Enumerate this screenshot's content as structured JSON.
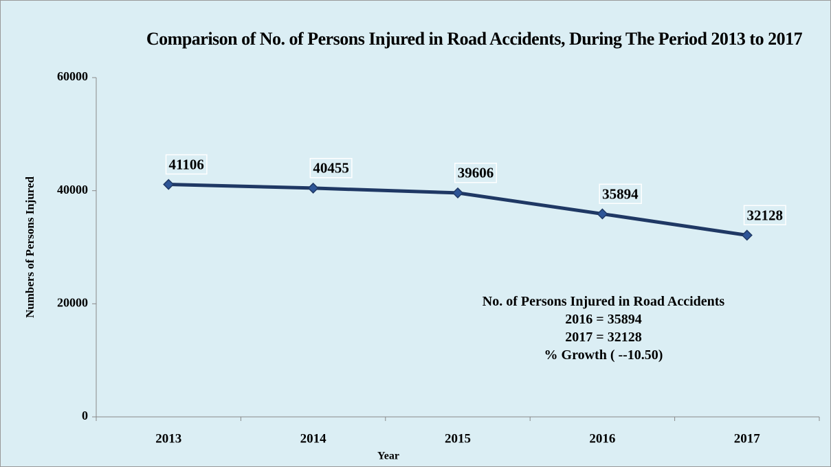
{
  "chart_data": {
    "type": "line",
    "title": "Comparison of No. of Persons Injured in Road Accidents, During The Period 2013 to 2017",
    "x_label": "Year",
    "y_label": "Numbers  of Persons Injured",
    "categories": [
      "2013",
      "2014",
      "2015",
      "2016",
      "2017"
    ],
    "series": [
      {
        "name": "No. of Persons Injured",
        "color": "#1f3864",
        "values": [
          41106,
          40455,
          39606,
          35894,
          32128
        ]
      }
    ],
    "ylim": [
      0,
      60000
    ],
    "yticks": [
      0,
      20000,
      40000,
      60000
    ],
    "grid": false,
    "annotation": [
      "No. of Persons Injured in Road Accidents",
      "2016 = 35894",
      "2017 = 32128",
      "% Growth ( --10.50)"
    ]
  }
}
